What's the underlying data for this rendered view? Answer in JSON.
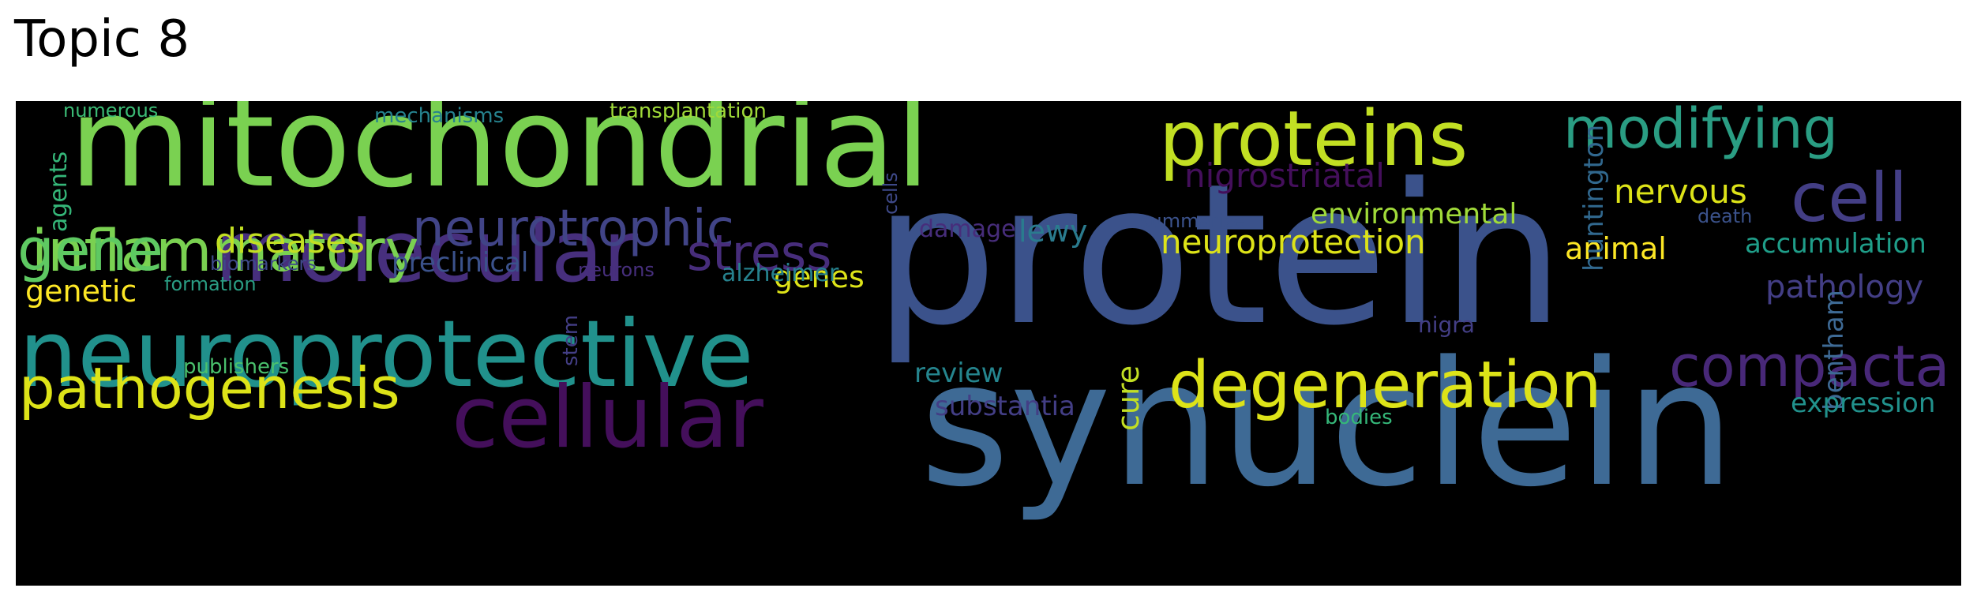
{
  "title": "Topic 8",
  "colors": {
    "background": "#000000",
    "palette": "viridis"
  },
  "words": [
    {
      "text": "protein",
      "color": "#3b528b"
    },
    {
      "text": "synuclein",
      "color": "#3e6a95"
    },
    {
      "text": "mitochondrial",
      "color": "#7ad151"
    },
    {
      "text": "neuroprotective",
      "color": "#21918c"
    },
    {
      "text": "molecular",
      "color": "#472f7d"
    },
    {
      "text": "cellular",
      "color": "#440f5b"
    },
    {
      "text": "inflammatory",
      "color": "#7ad151"
    },
    {
      "text": "proteins",
      "color": "#c2df23"
    },
    {
      "text": "modifying",
      "color": "#2a9d83"
    },
    {
      "text": "degeneration",
      "color": "#dde318"
    },
    {
      "text": "pathogenesis",
      "color": "#dde318"
    },
    {
      "text": "gene",
      "color": "#5ec962"
    },
    {
      "text": "cell",
      "color": "#433e85"
    },
    {
      "text": "compacta",
      "color": "#482878"
    },
    {
      "text": "neurotrophic",
      "color": "#414487"
    },
    {
      "text": "stress",
      "color": "#472d7b"
    },
    {
      "text": "diseases",
      "color": "#c2df23"
    },
    {
      "text": "neuroprotection",
      "color": "#dde318"
    },
    {
      "text": "nigrostriatal",
      "color": "#440f5b"
    },
    {
      "text": "nervous",
      "color": "#dde318"
    },
    {
      "text": "environmental",
      "color": "#a0da39"
    },
    {
      "text": "genes",
      "color": "#dde318"
    },
    {
      "text": "genetic",
      "color": "#fde725"
    },
    {
      "text": "pathology",
      "color": "#433e85"
    },
    {
      "text": "accumulation",
      "color": "#1f9e89"
    },
    {
      "text": "animal",
      "color": "#fde725"
    },
    {
      "text": "bentham",
      "color": "#3e6a95"
    },
    {
      "text": "huntington",
      "color": "#31688e"
    },
    {
      "text": "lewy",
      "color": "#2a7b8e"
    },
    {
      "text": "cure",
      "color": "#c2df23"
    },
    {
      "text": "review",
      "color": "#25858e"
    },
    {
      "text": "substantia",
      "color": "#433e85"
    },
    {
      "text": "expression",
      "color": "#21918c"
    },
    {
      "text": "preclinical",
      "color": "#3b528b"
    },
    {
      "text": "alzheimer",
      "color": "#26828e"
    },
    {
      "text": "damage",
      "color": "#472d7b"
    },
    {
      "text": "biomarkers",
      "color": "#3e4989"
    },
    {
      "text": "agents",
      "color": "#35b779"
    },
    {
      "text": "numerous",
      "color": "#3bbb75"
    },
    {
      "text": "mechanisms",
      "color": "#26828e"
    },
    {
      "text": "transplantation",
      "color": "#a0da39"
    },
    {
      "text": "cells",
      "color": "#3e4989"
    },
    {
      "text": "summarize",
      "color": "#3b528b"
    },
    {
      "text": "death",
      "color": "#3b528b"
    },
    {
      "text": "formation",
      "color": "#2a9d83"
    },
    {
      "text": "stem",
      "color": "#433e85"
    },
    {
      "text": "neurons",
      "color": "#472f7d"
    },
    {
      "text": "publishers",
      "color": "#4ac16d"
    },
    {
      "text": "nigra",
      "color": "#433e85"
    },
    {
      "text": "bodies",
      "color": "#35b779"
    }
  ]
}
